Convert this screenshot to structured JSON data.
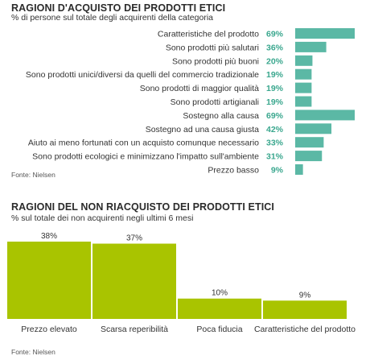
{
  "chart_data": [
    {
      "type": "bar",
      "orientation": "horizontal",
      "title": "RAGIONI D'ACQUISTO DEI PRODOTTI ETICI",
      "subtitle": "% di persone sul totale degli acquirenti della categoria",
      "source": "Fonte: Nielsen",
      "value_format": "{v}%",
      "bar_color": "#5bb8a5",
      "label_color": "#3aa78e",
      "xlim": [
        0,
        69
      ],
      "categories": [
        "Caratteristiche del prodotto",
        "Sono prodotti più salutari",
        "Sono prodotti più buoni",
        "Sono prodotti unici/diversi da quelli del commercio tradizionale",
        "Sono prodotti di maggior qualità",
        "Sono prodotti artigianali",
        "Sostegno alla causa",
        "Sostegno ad una causa giusta",
        "Aiuto ai meno fortunati con un acquisto comunque necessario",
        "Sono prodotti ecologici e minimizzano l'impatto sull'ambiente",
        "Prezzo basso"
      ],
      "values": [
        69,
        36,
        20,
        19,
        19,
        19,
        69,
        42,
        33,
        31,
        9
      ]
    },
    {
      "type": "bar",
      "orientation": "vertical",
      "title": "RAGIONI DEL NON RIACQUISTO DEI PRODOTTI ETICI",
      "subtitle": "% sul totale dei non acquirenti negli ultimi 6 mesi",
      "source": "Fonte: Nielsen",
      "value_format": "{v}%",
      "bar_color": "#a9c400",
      "ylim": [
        0,
        38
      ],
      "categories": [
        "Prezzo elevato",
        "Scarsa reperibilità",
        "Poca fiducia",
        "Caratteristiche del prodotto"
      ],
      "values": [
        38,
        37,
        10,
        9
      ]
    }
  ]
}
